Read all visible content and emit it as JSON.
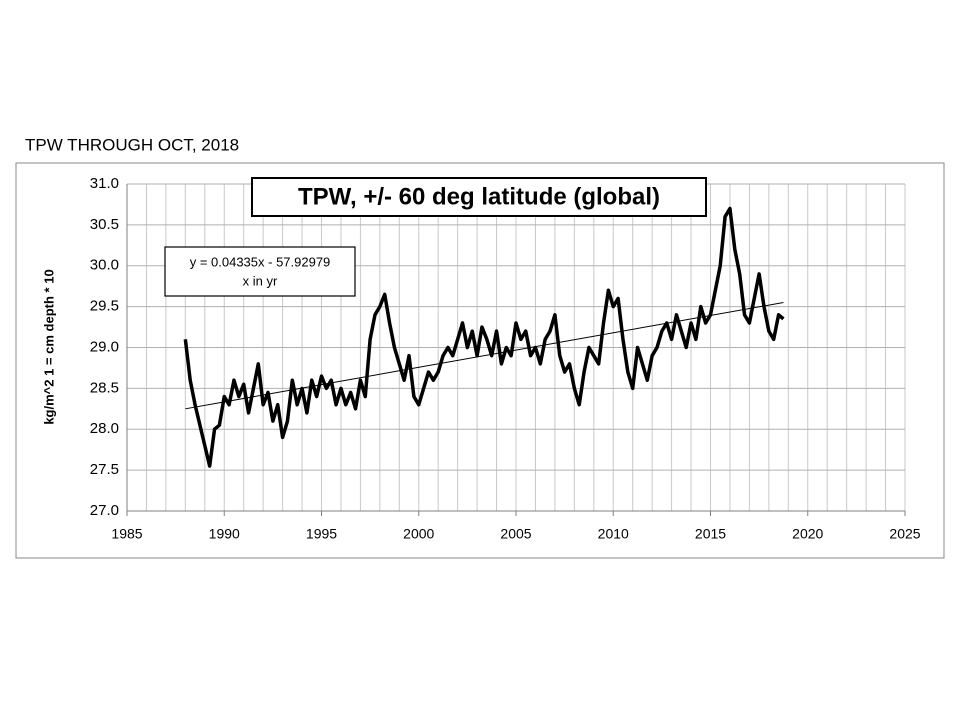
{
  "page_label": "TPW THROUGH OCT, 2018",
  "chart_data": {
    "type": "line",
    "title": "TPW, +/- 60 deg latitude (global)",
    "annotation": [
      "y = 0.04335x - 57.92979",
      "x in yr"
    ],
    "y_label": "kg/m^2 1 = cm depth * 10",
    "xlim": [
      1985,
      2025
    ],
    "xticks": [
      1985,
      1990,
      1995,
      2000,
      2005,
      2010,
      2015,
      2020,
      2025
    ],
    "ylim": [
      27,
      31
    ],
    "yticks": [
      {
        "value": 27,
        "label": "27.0"
      },
      27.5,
      {
        "value": 28,
        "label": "28.0"
      },
      28.5,
      {
        "value": 29,
        "label": "29.0"
      },
      29.5,
      {
        "value": 30,
        "label": "30.0"
      },
      30.5,
      {
        "value": 31,
        "label": "31.0"
      }
    ],
    "grid": true,
    "series": [
      {
        "color": "#000000",
        "x": [
          1988.0,
          1988.25,
          1988.5,
          1988.75,
          1989.0,
          1989.25,
          1989.5,
          1989.75,
          1990.0,
          1990.25,
          1990.5,
          1990.75,
          1991.0,
          1991.25,
          1991.5,
          1991.75,
          1992.0,
          1992.25,
          1992.5,
          1992.75,
          1993.0,
          1993.25,
          1993.5,
          1993.75,
          1994.0,
          1994.25,
          1994.5,
          1994.75,
          1995.0,
          1995.25,
          1995.5,
          1995.75,
          1996.0,
          1996.25,
          1996.5,
          1996.75,
          1997.0,
          1997.25,
          1997.5,
          1997.75,
          1998.0,
          1998.25,
          1998.5,
          1998.75,
          1999.0,
          1999.25,
          1999.5,
          1999.75,
          2000.0,
          2000.25,
          2000.5,
          2000.75,
          2001.0,
          2001.25,
          2001.5,
          2001.75,
          2002.0,
          2002.25,
          2002.5,
          2002.75,
          2003.0,
          2003.25,
          2003.5,
          2003.75,
          2004.0,
          2004.25,
          2004.5,
          2004.75,
          2005.0,
          2005.25,
          2005.5,
          2005.75,
          2006.0,
          2006.25,
          2006.5,
          2006.75,
          2007.0,
          2007.25,
          2007.5,
          2007.75,
          2008.0,
          2008.25,
          2008.5,
          2008.75,
          2009.0,
          2009.25,
          2009.5,
          2009.75,
          2010.0,
          2010.25,
          2010.5,
          2010.75,
          2011.0,
          2011.25,
          2011.5,
          2011.75,
          2012.0,
          2012.25,
          2012.5,
          2012.75,
          2013.0,
          2013.25,
          2013.5,
          2013.75,
          2014.0,
          2014.25,
          2014.5,
          2014.75,
          2015.0,
          2015.25,
          2015.5,
          2015.75,
          2016.0,
          2016.25,
          2016.5,
          2016.75,
          2017.0,
          2017.25,
          2017.5,
          2017.75,
          2018.0,
          2018.25,
          2018.5,
          2018.75
        ],
        "values": [
          29.1,
          28.6,
          28.3,
          28.05,
          27.8,
          27.55,
          28.0,
          28.05,
          28.4,
          28.3,
          28.6,
          28.4,
          28.55,
          28.2,
          28.5,
          28.8,
          28.3,
          28.45,
          28.1,
          28.3,
          27.9,
          28.1,
          28.6,
          28.3,
          28.5,
          28.2,
          28.6,
          28.4,
          28.65,
          28.5,
          28.6,
          28.3,
          28.5,
          28.3,
          28.45,
          28.25,
          28.6,
          28.4,
          29.1,
          29.4,
          29.5,
          29.65,
          29.3,
          29.0,
          28.8,
          28.6,
          28.9,
          28.4,
          28.3,
          28.5,
          28.7,
          28.6,
          28.7,
          28.9,
          29.0,
          28.9,
          29.1,
          29.3,
          29.0,
          29.2,
          28.9,
          29.25,
          29.1,
          28.9,
          29.2,
          28.8,
          29.0,
          28.9,
          29.3,
          29.1,
          29.2,
          28.9,
          29.0,
          28.8,
          29.1,
          29.2,
          29.4,
          28.9,
          28.7,
          28.8,
          28.5,
          28.3,
          28.7,
          29.0,
          28.9,
          28.8,
          29.3,
          29.7,
          29.5,
          29.6,
          29.1,
          28.7,
          28.5,
          29.0,
          28.8,
          28.6,
          28.9,
          29.0,
          29.2,
          29.3,
          29.1,
          29.4,
          29.2,
          29.0,
          29.3,
          29.1,
          29.5,
          29.3,
          29.4,
          29.7,
          30.0,
          30.6,
          30.7,
          30.2,
          29.9,
          29.4,
          29.3,
          29.6,
          29.9,
          29.5,
          29.2,
          29.1,
          29.4,
          29.35
        ]
      },
      {
        "color": "#000000",
        "x": [
          1988.0,
          2018.75
        ],
        "values": [
          28.25,
          29.55
        ]
      }
    ]
  }
}
